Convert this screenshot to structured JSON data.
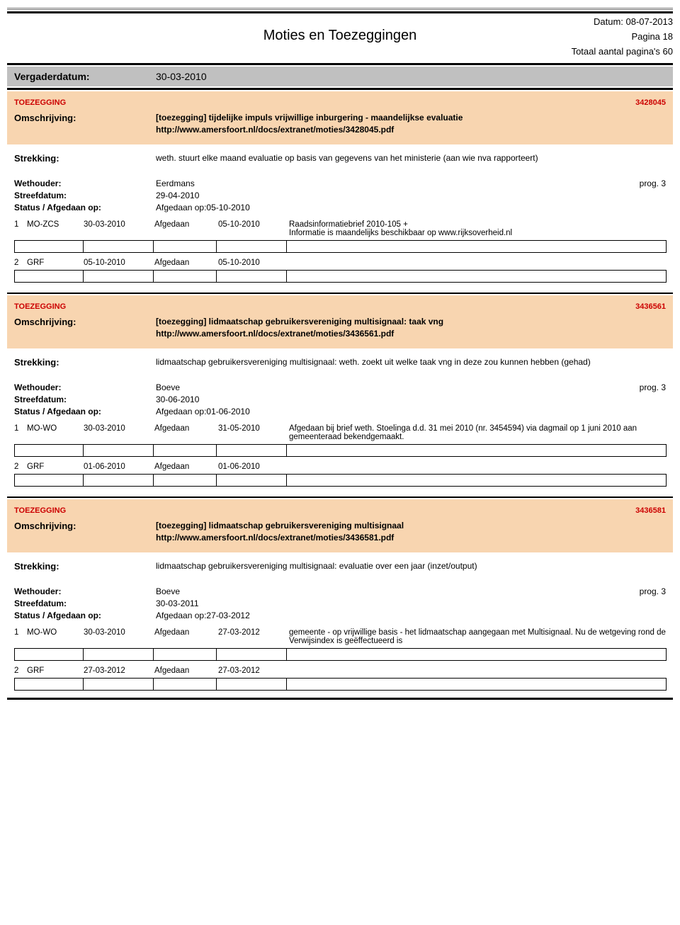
{
  "header": {
    "date_label": "Datum: 08-07-2013",
    "title": "Moties en Toezeggingen",
    "page_label": "Pagina 18",
    "total_label": "Totaal aantal pagina's 60"
  },
  "vergader": {
    "label": "Vergaderdatum:",
    "value": "30-03-2010"
  },
  "items": [
    {
      "type": "TOEZEGGING",
      "ref": "3428045",
      "omschrijving_label": "Omschrijving:",
      "title": "[toezegging] tijdelijke impuls vrijwillige inburgering - maandelijkse evaluatie",
      "url": "http://www.amersfoort.nl/docs/extranet/moties/3428045.pdf",
      "strekking_label": "Strekking:",
      "strekking": "weth. stuurt elke maand evaluatie op basis van gegevens van het ministerie (aan wie nva rapporteert)",
      "wethouder_label": "Wethouder:",
      "wethouder": "Eerdmans",
      "prog": "prog. 3",
      "streef_label": "Streefdatum:",
      "streefdatum": "29-04-2010",
      "status_label": "Status / Afgedaan op:",
      "status": "Afgedaan op:05-10-2010",
      "history": [
        {
          "idx": "1",
          "code": "MO-ZCS",
          "d1": "30-03-2010",
          "stat": "Afgedaan",
          "d2": "05-10-2010",
          "note": "Raadsinformatiebrief 2010-105 +\nInformatie is maandelijks beschikbaar op www.rijksoverheid.nl"
        },
        {
          "idx": "2",
          "code": "GRF",
          "d1": "05-10-2010",
          "stat": "Afgedaan",
          "d2": "05-10-2010",
          "note": ""
        }
      ]
    },
    {
      "type": "TOEZEGGING",
      "ref": "3436561",
      "omschrijving_label": "Omschrijving:",
      "title": "[toezegging] lidmaatschap gebruikersvereniging multisignaal: taak vng",
      "url": "http://www.amersfoort.nl/docs/extranet/moties/3436561.pdf",
      "strekking_label": "Strekking:",
      "strekking": "lidmaatschap gebruikersvereniging multisignaal: weth. zoekt uit welke taak vng in deze zou kunnen hebben (gehad)",
      "wethouder_label": "Wethouder:",
      "wethouder": "Boeve",
      "prog": "prog. 3",
      "streef_label": "Streefdatum:",
      "streefdatum": "30-06-2010",
      "status_label": "Status / Afgedaan op:",
      "status": "Afgedaan op:01-06-2010",
      "history": [
        {
          "idx": "1",
          "code": "MO-WO",
          "d1": "30-03-2010",
          "stat": "Afgedaan",
          "d2": "31-05-2010",
          "note": "Afgedaan bij brief weth. Stoelinga d.d. 31 mei 2010 (nr. 3454594) via dagmail op 1 juni 2010 aan gemeenteraad bekendgemaakt."
        },
        {
          "idx": "2",
          "code": "GRF",
          "d1": "01-06-2010",
          "stat": "Afgedaan",
          "d2": "01-06-2010",
          "note": ""
        }
      ]
    },
    {
      "type": "TOEZEGGING",
      "ref": "3436581",
      "omschrijving_label": "Omschrijving:",
      "title": "[toezegging] lidmaatschap gebruikersvereniging multisignaal",
      "url": "http://www.amersfoort.nl/docs/extranet/moties/3436581.pdf",
      "strekking_label": "Strekking:",
      "strekking": "lidmaatschap gebruikersvereniging multisignaal: evaluatie over een jaar (inzet/output)",
      "wethouder_label": "Wethouder:",
      "wethouder": "Boeve",
      "prog": "prog. 3",
      "streef_label": "Streefdatum:",
      "streefdatum": "30-03-2011",
      "status_label": "Status / Afgedaan op:",
      "status": "Afgedaan op:27-03-2012",
      "history": [
        {
          "idx": "1",
          "code": "MO-WO",
          "d1": "30-03-2010",
          "stat": "Afgedaan",
          "d2": "27-03-2012",
          "note": "gemeente - op vrijwillige basis - het lidmaatschap aangegaan met Multisignaal. Nu de wetgeving rond de Verwijsindex is geëffectueerd is"
        },
        {
          "idx": "2",
          "code": "GRF",
          "d1": "27-03-2012",
          "stat": "Afgedaan",
          "d2": "27-03-2012",
          "note": ""
        }
      ]
    }
  ]
}
